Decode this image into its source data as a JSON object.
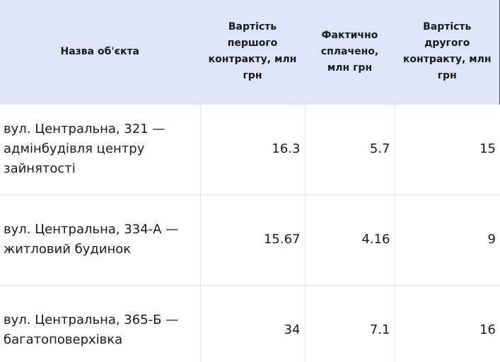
{
  "table": {
    "header": [
      "Назва об'єкта",
      "Вартість першого контракту, млн грн",
      "Фактично сплачено, млн грн",
      "Вартість другого контракту, млн грн"
    ],
    "rows": [
      [
        "вул. Центральна, 321 — адмінбудівля центру зайнятості",
        "16.3",
        "5.7",
        "15"
      ],
      [
        "вул. Центральна, 334-А — житловий будинок",
        "15.67",
        "4.16",
        "9"
      ],
      [
        "вул. Центральна, 365-Б — багатоповерхівка",
        "34",
        "7.1",
        "16"
      ]
    ]
  }
}
